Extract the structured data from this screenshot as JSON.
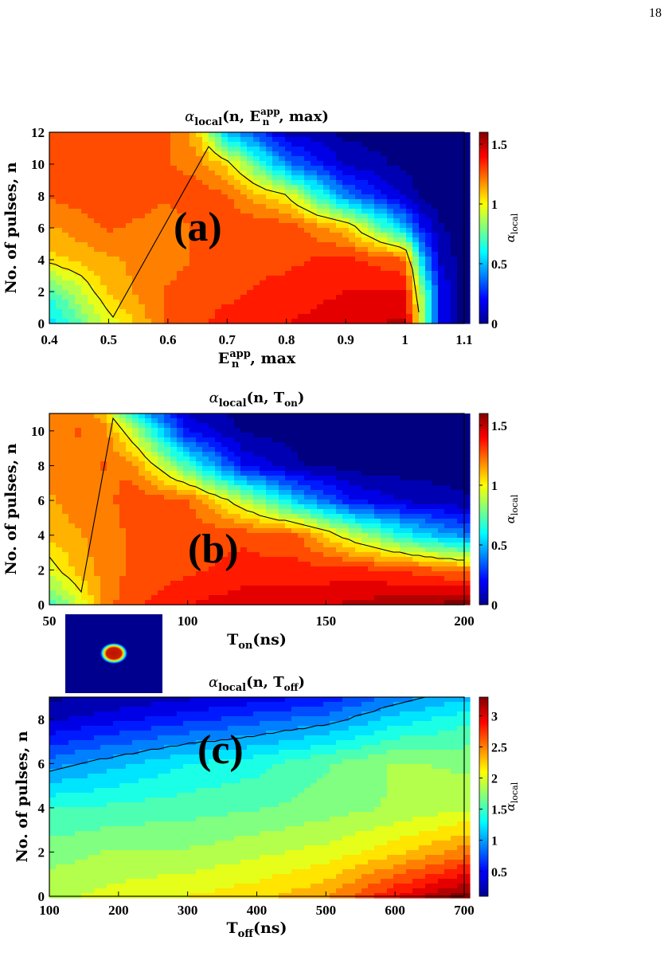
{
  "page": {
    "number": "18"
  },
  "chart_data": [
    {
      "type": "heatmap",
      "panel_label": "(a)",
      "title": "αlocal(n, Enapp, max)",
      "title_parts": {
        "alpha": "α",
        "sub": "local",
        "args_open": "(n, E",
        "sup": "app",
        "sub2": "n",
        "args_close": ", max)"
      },
      "xlabel": "Enapp, max",
      "xlabel_parts": {
        "main": "E",
        "sup": "app",
        "sub": "n",
        "rest": ", max"
      },
      "ylabel": "No.  of pulses, n",
      "xlim": [
        0.4,
        1.1
      ],
      "ylim": [
        0,
        12
      ],
      "xticks": [
        "0.4",
        "0.5",
        "0.6",
        "0.7",
        "0.8",
        "0.9",
        "1",
        "1.1"
      ],
      "yticks": [
        "0",
        "2",
        "4",
        "6",
        "8",
        "10",
        "12"
      ],
      "colorbar": {
        "label": "αlocal",
        "min": 0,
        "max": 1.6,
        "ticks": [
          "0",
          "0.5",
          "1",
          "1.5"
        ],
        "colormap": "jet"
      },
      "contour_level": 1.0,
      "x_samples": [
        0.4,
        0.5,
        0.6,
        0.65,
        0.7,
        0.8,
        0.9,
        1.0,
        1.03,
        1.06,
        1.1
      ],
      "y_samples": [
        0,
        2,
        4,
        6,
        8,
        10,
        12
      ],
      "z": [
        [
          0.55,
          0.95,
          1.25,
          1.3,
          1.35,
          1.4,
          1.45,
          1.5,
          0.9,
          0.2,
          0.0
        ],
        [
          0.7,
          1.1,
          1.25,
          1.3,
          1.3,
          1.35,
          1.4,
          1.4,
          0.8,
          0.2,
          0.0
        ],
        [
          1.05,
          1.15,
          1.2,
          1.25,
          1.3,
          1.3,
          1.35,
          1.25,
          0.5,
          0.1,
          0.0
        ],
        [
          1.15,
          1.25,
          1.2,
          1.25,
          1.3,
          1.3,
          1.1,
          0.5,
          0.2,
          0.05,
          0.0
        ],
        [
          1.25,
          1.3,
          1.25,
          1.3,
          1.25,
          1.0,
          0.4,
          0.1,
          0.02,
          0.0,
          0.0
        ],
        [
          1.3,
          1.3,
          1.25,
          1.2,
          1.05,
          0.4,
          0.1,
          0.02,
          0.0,
          0.0,
          0.0
        ],
        [
          1.3,
          1.3,
          1.25,
          1.1,
          0.5,
          0.1,
          0.02,
          0.0,
          0.0,
          0.0,
          0.0
        ]
      ]
    },
    {
      "type": "heatmap",
      "panel_label": "(b)",
      "title": "αlocal(n, Ton)",
      "title_parts": {
        "alpha": "α",
        "sub": "local",
        "args_open": "(n, T",
        "sub2": "on",
        "args_close": ")"
      },
      "xlabel": "Ton(ns)",
      "xlabel_parts": {
        "main": "T",
        "sub": "on",
        "rest": "(ns)"
      },
      "ylabel": "No.  of pulses, n",
      "xlim": [
        50,
        200
      ],
      "ylim": [
        0,
        11
      ],
      "xticks": [
        "50",
        "100",
        "150",
        "200"
      ],
      "yticks": [
        "0",
        "2",
        "4",
        "6",
        "8",
        "10"
      ],
      "colorbar": {
        "label": "αlocal",
        "min": 0,
        "max": 1.6,
        "ticks": [
          "0",
          "0.5",
          "1",
          "1.5"
        ],
        "colormap": "jet"
      },
      "contour_level": 1.0,
      "x_samples": [
        50,
        60,
        70,
        80,
        100,
        120,
        140,
        160,
        180,
        200
      ],
      "y_samples": [
        0,
        2,
        4,
        6,
        8,
        10,
        11
      ],
      "z": [
        [
          0.7,
          0.9,
          1.2,
          1.3,
          1.4,
          1.45,
          1.45,
          1.5,
          1.55,
          1.6
        ],
        [
          0.95,
          1.1,
          1.2,
          1.25,
          1.3,
          1.35,
          1.35,
          1.35,
          1.3,
          1.2
        ],
        [
          1.1,
          1.15,
          1.2,
          1.25,
          1.3,
          1.3,
          1.25,
          0.9,
          0.6,
          0.4
        ],
        [
          1.15,
          1.2,
          1.2,
          1.3,
          1.25,
          0.9,
          0.5,
          0.2,
          0.1,
          0.05
        ],
        [
          1.2,
          1.2,
          1.25,
          1.2,
          0.7,
          0.2,
          0.05,
          0.0,
          0.0,
          0.0
        ],
        [
          1.2,
          1.25,
          1.2,
          0.9,
          0.2,
          0.03,
          0.0,
          0.0,
          0.0,
          0.0
        ],
        [
          1.2,
          1.2,
          1.1,
          0.6,
          0.1,
          0.0,
          0.0,
          0.0,
          0.0,
          0.0
        ]
      ]
    },
    {
      "type": "heatmap",
      "panel_label": "(c)",
      "title": "αlocal(n, Toff)",
      "title_parts": {
        "alpha": "α",
        "sub": "local",
        "args_open": "(n, T",
        "sub2": "off",
        "args_close": ")"
      },
      "xlabel": "Toff(ns)",
      "xlabel_parts": {
        "main": "T",
        "sub": "off",
        "rest": "(ns)"
      },
      "ylabel": "No.  of pulses, n",
      "xlim": [
        100,
        700
      ],
      "ylim": [
        0,
        9
      ],
      "xticks": [
        "100",
        "200",
        "300",
        "400",
        "500",
        "600",
        "700"
      ],
      "yticks": [
        "0",
        "2",
        "4",
        "6",
        "8"
      ],
      "colorbar": {
        "label": "αlocal",
        "min": 0.1,
        "max": 3.3,
        "ticks": [
          "0.5",
          "1",
          "1.5",
          "2",
          "2.5",
          "3"
        ],
        "colormap": "jet"
      },
      "contour_level": 1.0,
      "x_samples": [
        100,
        200,
        300,
        400,
        500,
        600,
        700
      ],
      "y_samples": [
        0,
        2,
        4,
        6,
        8,
        9
      ],
      "z": [
        [
          1.9,
          2.0,
          2.1,
          2.2,
          2.4,
          2.9,
          3.3
        ],
        [
          1.7,
          1.8,
          1.8,
          1.9,
          2.0,
          2.2,
          2.5
        ],
        [
          1.45,
          1.5,
          1.55,
          1.6,
          1.7,
          1.8,
          1.9
        ],
        [
          0.9,
          1.1,
          1.3,
          1.4,
          1.6,
          1.8,
          1.75
        ],
        [
          0.3,
          0.45,
          0.6,
          0.75,
          0.9,
          1.2,
          1.4
        ],
        [
          0.15,
          0.2,
          0.3,
          0.4,
          0.55,
          0.9,
          1.1
        ]
      ]
    }
  ]
}
